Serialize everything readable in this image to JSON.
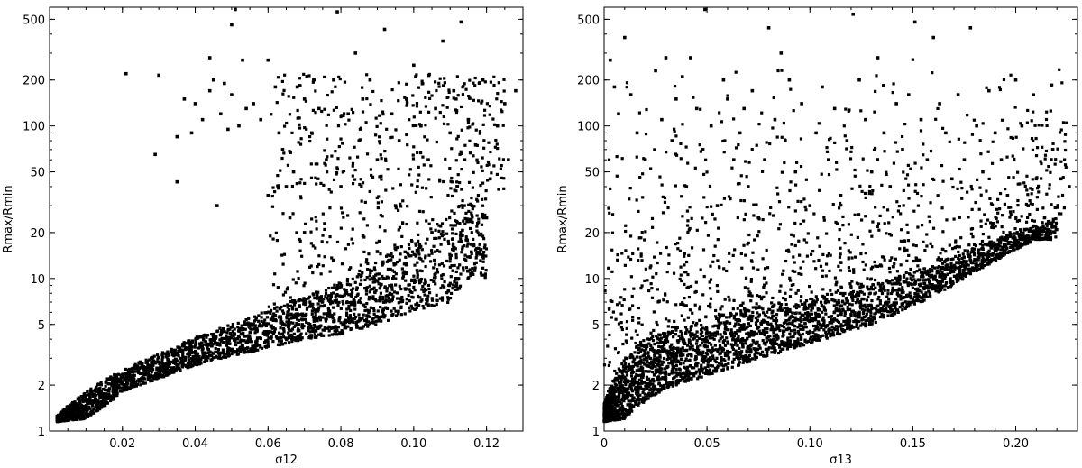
{
  "chart_data": [
    {
      "type": "scatter",
      "xlabel": "σ12",
      "ylabel": "Rmax/Rmin",
      "xlim": [
        0.0,
        0.13
      ],
      "ylim": [
        1,
        600
      ],
      "yscale": "log",
      "xticks": [
        "0.02",
        "0.04",
        "0.06",
        "0.08",
        "0.10",
        "0.12"
      ],
      "yticks": [
        "1",
        "2",
        "5",
        "10",
        "20",
        "50",
        "100",
        "200",
        "500"
      ],
      "marker_color": "#000000",
      "grid": false,
      "points": [
        [
          0.021,
          220
        ],
        [
          0.03,
          215
        ],
        [
          0.029,
          65
        ],
        [
          0.035,
          43
        ],
        [
          0.035,
          85
        ],
        [
          0.037,
          150
        ],
        [
          0.039,
          90
        ],
        [
          0.04,
          140
        ],
        [
          0.042,
          110
        ],
        [
          0.044,
          170
        ],
        [
          0.044,
          280
        ],
        [
          0.045,
          200
        ],
        [
          0.046,
          30
        ],
        [
          0.047,
          120
        ],
        [
          0.048,
          190
        ],
        [
          0.049,
          95
        ],
        [
          0.05,
          160
        ],
        [
          0.05,
          460
        ],
        [
          0.051,
          580
        ],
        [
          0.052,
          100
        ],
        [
          0.053,
          270
        ],
        [
          0.054,
          130
        ],
        [
          0.056,
          140
        ],
        [
          0.058,
          110
        ],
        [
          0.06,
          270
        ],
        [
          0.062,
          180
        ],
        [
          0.063,
          90
        ],
        [
          0.064,
          70
        ],
        [
          0.065,
          40
        ],
        [
          0.066,
          25
        ],
        [
          0.067,
          50
        ],
        [
          0.068,
          180
        ],
        [
          0.07,
          150
        ],
        [
          0.072,
          90
        ],
        [
          0.074,
          130
        ],
        [
          0.076,
          60
        ],
        [
          0.078,
          200
        ],
        [
          0.079,
          560
        ],
        [
          0.08,
          40
        ],
        [
          0.082,
          120
        ],
        [
          0.084,
          300
        ],
        [
          0.085,
          80
        ],
        [
          0.086,
          150
        ],
        [
          0.088,
          200
        ],
        [
          0.09,
          60
        ],
        [
          0.092,
          430
        ],
        [
          0.094,
          120
        ],
        [
          0.095,
          30
        ],
        [
          0.096,
          80
        ],
        [
          0.098,
          150
        ],
        [
          0.1,
          250
        ],
        [
          0.101,
          40
        ],
        [
          0.102,
          100
        ],
        [
          0.104,
          60
        ],
        [
          0.105,
          20
        ],
        [
          0.106,
          130
        ],
        [
          0.108,
          360
        ],
        [
          0.11,
          90
        ],
        [
          0.111,
          170
        ],
        [
          0.112,
          40
        ],
        [
          0.113,
          480
        ],
        [
          0.114,
          60
        ],
        [
          0.115,
          110
        ],
        [
          0.116,
          30
        ],
        [
          0.117,
          75
        ],
        [
          0.119,
          200
        ],
        [
          0.121,
          45
        ],
        [
          0.123,
          100
        ],
        [
          0.125,
          140
        ],
        [
          0.126,
          60
        ],
        [
          0.128,
          170
        ],
        [
          0.12,
          25
        ],
        [
          0.09,
          15
        ],
        [
          0.07,
          20
        ],
        [
          0.06,
          35
        ]
      ],
      "band": {
        "upper": [
          [
            0.002,
            1.25
          ],
          [
            0.01,
            1.8
          ],
          [
            0.02,
            2.5
          ],
          [
            0.03,
            3.2
          ],
          [
            0.04,
            4.1
          ],
          [
            0.05,
            5.0
          ],
          [
            0.06,
            6.2
          ],
          [
            0.07,
            7.5
          ],
          [
            0.08,
            9.5
          ],
          [
            0.09,
            13.0
          ],
          [
            0.1,
            18.0
          ],
          [
            0.11,
            27.0
          ],
          [
            0.12,
            38.0
          ]
        ],
        "lower": [
          [
            0.002,
            1.15
          ],
          [
            0.01,
            1.2
          ],
          [
            0.016,
            1.5
          ],
          [
            0.02,
            1.8
          ],
          [
            0.03,
            2.2
          ],
          [
            0.04,
            2.7
          ],
          [
            0.05,
            3.1
          ],
          [
            0.06,
            3.5
          ],
          [
            0.07,
            4.0
          ],
          [
            0.08,
            4.3
          ],
          [
            0.09,
            5.0
          ],
          [
            0.1,
            6.0
          ],
          [
            0.11,
            7.0
          ],
          [
            0.115,
            10.0
          ]
        ]
      }
    },
    {
      "type": "scatter",
      "xlabel": "σ13",
      "ylabel": "Rmax/Rmin",
      "xlim": [
        0.0,
        0.23
      ],
      "ylim": [
        1,
        600
      ],
      "yscale": "log",
      "xticks": [
        "0",
        "0.05",
        "0.10",
        "0.15",
        "0.20"
      ],
      "yticks": [
        "1",
        "2",
        "5",
        "10",
        "20",
        "50",
        "100",
        "200",
        "500"
      ],
      "marker_color": "#000000",
      "grid": false,
      "points": [
        [
          0.003,
          270
        ],
        [
          0.005,
          180
        ],
        [
          0.007,
          120
        ],
        [
          0.01,
          380
        ],
        [
          0.013,
          160
        ],
        [
          0.016,
          90
        ],
        [
          0.02,
          60
        ],
        [
          0.025,
          230
        ],
        [
          0.028,
          110
        ],
        [
          0.03,
          280
        ],
        [
          0.033,
          80
        ],
        [
          0.035,
          150
        ],
        [
          0.038,
          210
        ],
        [
          0.04,
          40
        ],
        [
          0.042,
          280
        ],
        [
          0.045,
          130
        ],
        [
          0.048,
          70
        ],
        [
          0.049,
          580
        ],
        [
          0.052,
          100
        ],
        [
          0.055,
          30
        ],
        [
          0.058,
          200
        ],
        [
          0.06,
          150
        ],
        [
          0.063,
          60
        ],
        [
          0.066,
          90
        ],
        [
          0.068,
          130
        ],
        [
          0.07,
          40
        ],
        [
          0.072,
          170
        ],
        [
          0.075,
          25
        ],
        [
          0.078,
          60
        ],
        [
          0.08,
          440
        ],
        [
          0.083,
          110
        ],
        [
          0.086,
          300
        ],
        [
          0.088,
          80
        ],
        [
          0.09,
          200
        ],
        [
          0.093,
          50
        ],
        [
          0.096,
          140
        ],
        [
          0.1,
          30
        ],
        [
          0.103,
          90
        ],
        [
          0.106,
          180
        ],
        [
          0.109,
          60
        ],
        [
          0.112,
          130
        ],
        [
          0.115,
          35
        ],
        [
          0.118,
          80
        ],
        [
          0.121,
          540
        ],
        [
          0.124,
          200
        ],
        [
          0.127,
          110
        ],
        [
          0.13,
          50
        ],
        [
          0.133,
          280
        ],
        [
          0.136,
          90
        ],
        [
          0.139,
          40
        ],
        [
          0.142,
          140
        ],
        [
          0.145,
          70
        ],
        [
          0.148,
          160
        ],
        [
          0.151,
          480
        ],
        [
          0.154,
          110
        ],
        [
          0.157,
          60
        ],
        [
          0.16,
          380
        ],
        [
          0.163,
          140
        ],
        [
          0.166,
          90
        ],
        [
          0.169,
          45
        ],
        [
          0.172,
          160
        ],
        [
          0.175,
          60
        ],
        [
          0.178,
          440
        ],
        [
          0.181,
          100
        ],
        [
          0.184,
          50
        ],
        [
          0.187,
          170
        ],
        [
          0.19,
          90
        ],
        [
          0.193,
          60
        ],
        [
          0.196,
          35
        ],
        [
          0.2,
          200
        ],
        [
          0.203,
          100
        ],
        [
          0.206,
          30
        ],
        [
          0.21,
          45
        ],
        [
          0.214,
          25
        ],
        [
          0.218,
          70
        ],
        [
          0.222,
          45
        ],
        [
          0.226,
          40
        ]
      ],
      "band": {
        "upper": [
          [
            0.0,
            1.5
          ],
          [
            0.01,
            3.0
          ],
          [
            0.02,
            4.0
          ],
          [
            0.04,
            5.0
          ],
          [
            0.06,
            6.0
          ],
          [
            0.08,
            6.8
          ],
          [
            0.1,
            7.5
          ],
          [
            0.12,
            8.5
          ],
          [
            0.14,
            10.0
          ],
          [
            0.16,
            12.0
          ],
          [
            0.18,
            16.0
          ],
          [
            0.2,
            20.0
          ],
          [
            0.22,
            25.0
          ]
        ],
        "lower": [
          [
            0.0,
            1.15
          ],
          [
            0.01,
            1.2
          ],
          [
            0.018,
            1.5
          ],
          [
            0.03,
            1.9
          ],
          [
            0.05,
            2.3
          ],
          [
            0.07,
            2.8
          ],
          [
            0.09,
            3.4
          ],
          [
            0.11,
            4.1
          ],
          [
            0.13,
            5.0
          ],
          [
            0.15,
            6.5
          ],
          [
            0.17,
            9.0
          ],
          [
            0.19,
            13.0
          ],
          [
            0.21,
            18.0
          ]
        ]
      }
    }
  ]
}
